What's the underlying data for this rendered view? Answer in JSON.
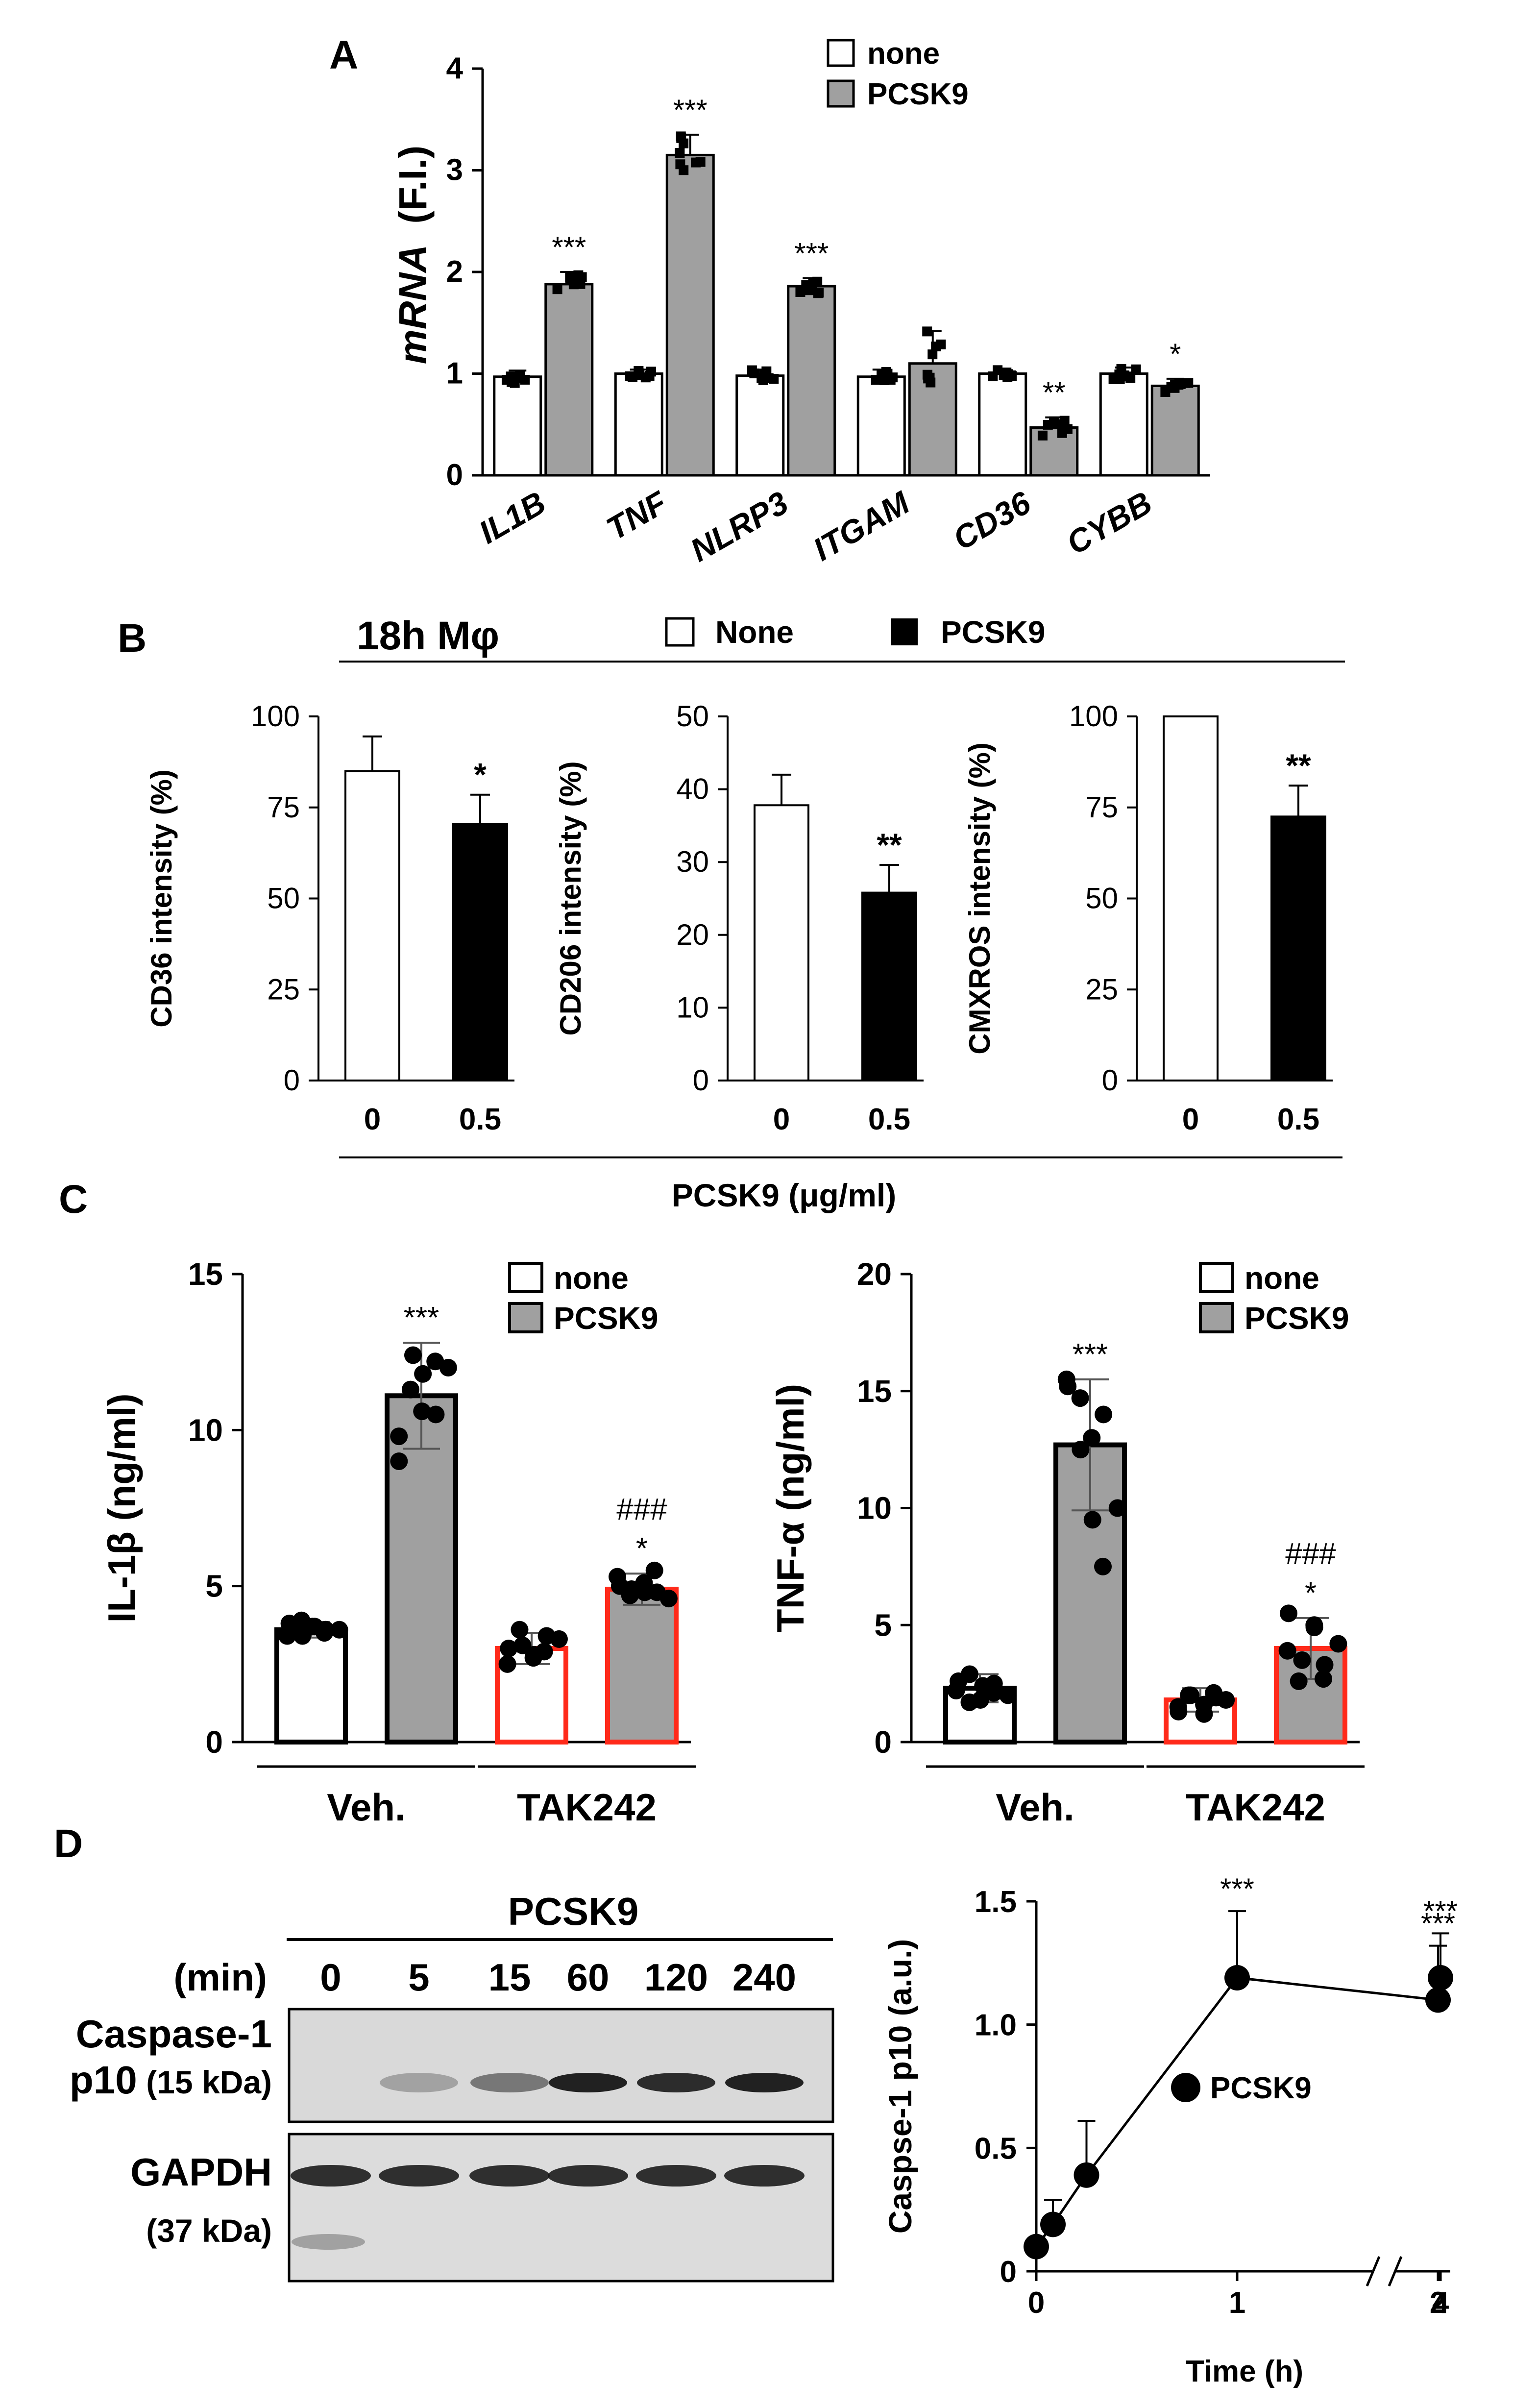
{
  "panels": {
    "A": {
      "letter": "A",
      "chart_data": {
        "type": "bar",
        "ylabel_italic": "mRNA",
        "ylabel_rest": "(F.I.)",
        "ylim": [
          0,
          4
        ],
        "yticks": [
          "0",
          "1",
          "2",
          "3",
          "4"
        ],
        "categories": [
          "IL1B",
          "TNF",
          "NLRP3",
          "ITGAM",
          "CD36",
          "CYBB"
        ],
        "legend": [
          "none",
          "PCSK9"
        ],
        "series": [
          {
            "name": "none",
            "color": "#ffffff",
            "values": [
              0.97,
              1.0,
              0.98,
              0.97,
              1.0,
              1.0
            ],
            "err": [
              0.06,
              0.04,
              0.06,
              0.07,
              0.05,
              0.06
            ]
          },
          {
            "name": "PCSK9",
            "color": "#a0a0a0",
            "values": [
              1.88,
              3.15,
              1.86,
              1.1,
              0.47,
              0.88
            ],
            "err": [
              0.12,
              0.2,
              0.08,
              0.32,
              0.1,
              0.07
            ]
          }
        ],
        "stars": [
          "***",
          "***",
          "***",
          "",
          "**",
          "*"
        ]
      }
    },
    "B": {
      "letter": "B",
      "header_title": "18h Mφ",
      "legend": [
        "None",
        "PCSK9"
      ],
      "xlabel": "PCSK9 (μg/ml)",
      "chart_data": [
        {
          "type": "bar",
          "ylabel": "CD36 intensity (%)",
          "ylim": [
            0,
            100
          ],
          "yticks": [
            "0",
            "25",
            "50",
            "75",
            "100"
          ],
          "categories": [
            "0",
            "0.5"
          ],
          "values": [
            85,
            70.5
          ],
          "err": [
            9.5,
            8
          ],
          "stars": [
            "",
            "*"
          ]
        },
        {
          "type": "bar",
          "ylabel": "CD206 intensity (%)",
          "ylim": [
            0,
            50
          ],
          "yticks": [
            "0",
            "10",
            "20",
            "30",
            "40",
            "50"
          ],
          "categories": [
            "0",
            "0.5"
          ],
          "values": [
            37.8,
            25.8
          ],
          "err": [
            4.2,
            3.8
          ],
          "stars": [
            "",
            "**"
          ]
        },
        {
          "type": "bar",
          "ylabel": "CMXROS intensity (%)",
          "ylim": [
            0,
            100
          ],
          "yticks": [
            "0",
            "25",
            "50",
            "75",
            "100"
          ],
          "categories": [
            "0",
            "0.5"
          ],
          "values": [
            100,
            72.5
          ],
          "err": [
            0,
            8.5
          ],
          "stars": [
            "",
            "**"
          ]
        }
      ]
    },
    "C": {
      "letter": "C",
      "legend": [
        "none",
        "PCSK9"
      ],
      "chart_data": [
        {
          "type": "bar",
          "ylabel": "IL-1β (ng/ml)",
          "ylim": [
            0,
            15
          ],
          "yticks": [
            "0",
            "5",
            "10",
            "15"
          ],
          "groups": [
            "Veh.",
            "TAK242"
          ],
          "values": [
            3.6,
            11.1,
            3.0,
            4.9
          ],
          "err": [
            0.25,
            1.7,
            0.5,
            0.5
          ],
          "fills": [
            "#ffffff",
            "#a0a0a0",
            "#ffffff",
            "#a0a0a0"
          ],
          "outlines": [
            "#000000",
            "#000000",
            "#ff2a1a",
            "#ff2a1a"
          ],
          "stars": [
            "",
            "***",
            "",
            "*"
          ],
          "hashes": [
            "",
            "",
            "",
            "###"
          ],
          "points": [
            [
              3.4,
              3.9,
              3.7,
              3.5,
              3.6,
              3.8,
              3.4,
              3.7,
              3.6
            ],
            [
              9.0,
              12.4,
              11.8,
              10.5,
              12.0,
              9.8,
              11.3,
              10.6,
              12.2
            ],
            [
              3.0,
              3.6,
              2.7,
              2.9,
              3.3,
              2.5,
              3.1,
              2.8,
              3.4
            ],
            [
              5.3,
              4.7,
              4.8,
              5.5,
              4.6,
              5.0,
              4.9,
              5.1,
              4.8
            ]
          ]
        },
        {
          "type": "bar",
          "ylabel": "TNF-α (ng/ml)",
          "ylim": [
            0,
            20
          ],
          "yticks": [
            "0",
            "5",
            "10",
            "15",
            "20"
          ],
          "groups": [
            "Veh.",
            "TAK242"
          ],
          "values": [
            2.3,
            12.7,
            1.8,
            4.0
          ],
          "err": [
            0.6,
            2.8,
            0.5,
            1.3
          ],
          "fills": [
            "#ffffff",
            "#a0a0a0",
            "#ffffff",
            "#a0a0a0"
          ],
          "outlines": [
            "#000000",
            "#000000",
            "#ff2a1a",
            "#ff2a1a"
          ],
          "stars": [
            "",
            "***",
            "",
            "*"
          ],
          "hashes": [
            "",
            "",
            "",
            "###"
          ],
          "points": [
            [
              2.2,
              2.9,
              1.8,
              2.5,
              2.0,
              2.6,
              1.7,
              2.4,
              2.1
            ],
            [
              15.2,
              14.7,
              13.0,
              7.5,
              10.0,
              15.5,
              12.5,
              9.5,
              14.0
            ],
            [
              1.5,
              2.0,
              1.2,
              2.1,
              1.8,
              1.3,
              2.0,
              1.6,
              1.9
            ],
            [
              5.5,
              3.5,
              4.9,
              2.7,
              4.2,
              3.9,
              2.6,
              5.0,
              3.3
            ]
          ]
        }
      ]
    },
    "D": {
      "letter": "D",
      "blot": {
        "treatment": "PCSK9",
        "unit": "(min)",
        "lanes": [
          "0",
          "5",
          "15",
          "60",
          "120",
          "240"
        ],
        "row1_label_1": "Caspase-1",
        "row1_label_2a": "p10",
        "row1_label_2b": "(15 kDa)",
        "row2_label_1": "GAPDH",
        "row2_label_2": "(37 kDa)",
        "p10_intensity": [
          0.0,
          0.25,
          0.45,
          0.85,
          0.8,
          0.85
        ]
      },
      "chart_data": {
        "type": "line",
        "ylabel": "Caspse-1 p10 (a.u.)",
        "xlabel": "Time (h)",
        "ylim": [
          0,
          1.5
        ],
        "yticks": [
          "0",
          "0.5",
          "1.0",
          "1.5"
        ],
        "xticks": [
          "0",
          "1",
          "2",
          "4"
        ],
        "series": [
          {
            "name": "PCSK9",
            "x": [
              0,
              0.083,
              0.25,
              1,
              2,
              4
            ],
            "y": [
              0.1,
              0.19,
              0.39,
              1.19,
              1.1,
              1.19
            ],
            "err": [
              0.03,
              0.1,
              0.22,
              0.27,
              0.22,
              0.18
            ]
          }
        ],
        "stars": [
          "",
          "",
          "",
          "***",
          "***",
          "***"
        ]
      }
    }
  }
}
